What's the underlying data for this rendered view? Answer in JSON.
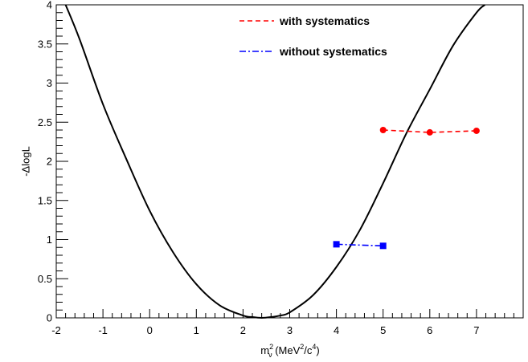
{
  "chart_data": {
    "type": "line",
    "xlabel": {
      "base": "m",
      "sup": "2",
      "sub": "ν",
      "rest_prefix": " (MeV",
      "rest_sup1": "2",
      "rest_mid": "/c",
      "rest_sup2": "4",
      "rest_suffix": ")"
    },
    "ylabel": "-ΔlogL",
    "xlim": [
      -2,
      8
    ],
    "ylim": [
      0,
      4
    ],
    "x_ticks": [
      -2,
      -1,
      0,
      1,
      2,
      3,
      4,
      5,
      6,
      7
    ],
    "x_tick_labels": [
      "-2",
      "-1",
      "0",
      "1",
      "2",
      "3",
      "4",
      "5",
      "6",
      "7"
    ],
    "y_ticks": [
      0,
      0.5,
      1,
      1.5,
      2,
      2.5,
      3,
      3.5,
      4
    ],
    "y_tick_labels": [
      "0",
      "0.5",
      "1",
      "1.5",
      "2",
      "2.5",
      "3",
      "3.5",
      "4"
    ],
    "curve": {
      "name": "",
      "color": "#000000",
      "x": [
        -1.8,
        -1.5,
        -1.0,
        -0.5,
        0,
        0.5,
        1.0,
        1.5,
        2.0,
        2.2,
        2.4,
        2.6,
        2.8,
        3.0,
        3.5,
        4.0,
        4.5,
        5.0,
        5.5,
        6.0,
        6.5,
        7.0,
        7.18
      ],
      "y": [
        4.0,
        3.56,
        2.73,
        2.03,
        1.37,
        0.84,
        0.43,
        0.16,
        0.03,
        0.01,
        0.0,
        0.01,
        0.03,
        0.07,
        0.29,
        0.65,
        1.12,
        1.72,
        2.36,
        2.92,
        3.48,
        3.9,
        4.0
      ]
    },
    "series": [
      {
        "name": "with systematics",
        "color": "#ff0000",
        "marker": "circle",
        "dash": "6,4",
        "x": [
          5,
          6,
          7
        ],
        "y": [
          2.4,
          2.37,
          2.39
        ]
      },
      {
        "name": "without systematics",
        "color": "#0000ff",
        "marker": "square",
        "dash": "8,3,2,3",
        "x": [
          4,
          5
        ],
        "y": [
          0.94,
          0.92
        ]
      }
    ],
    "legend_position": "top-center",
    "grid": false
  }
}
